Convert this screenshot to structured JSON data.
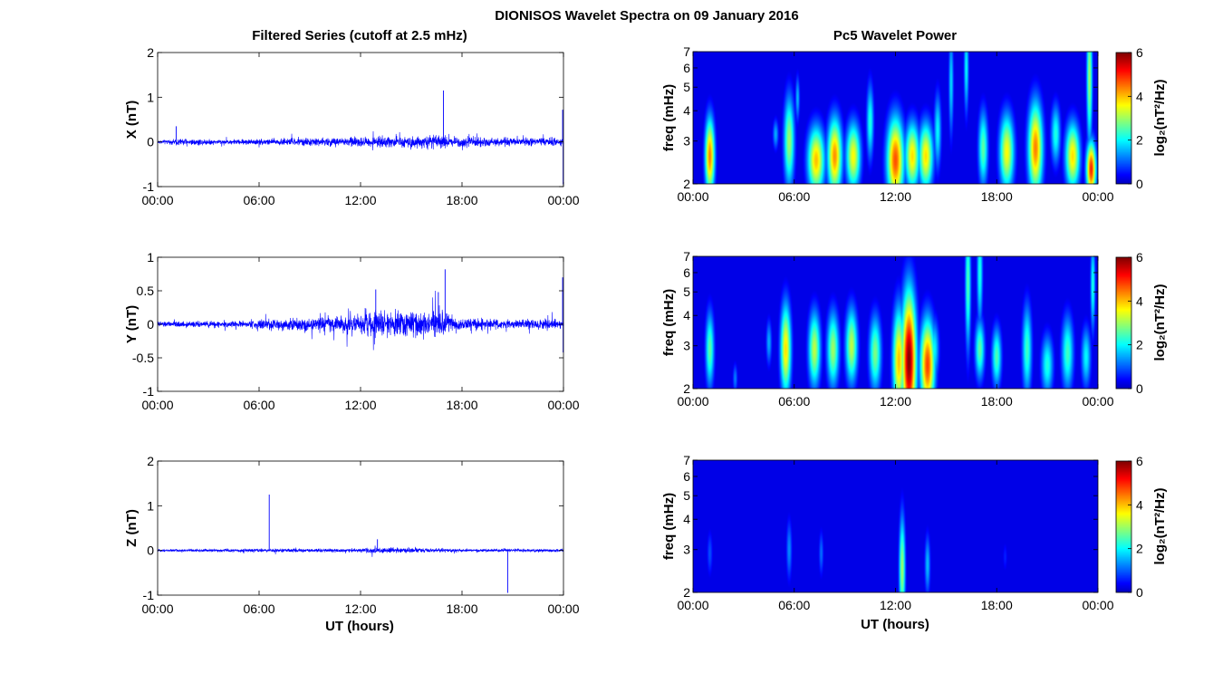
{
  "figure": {
    "title": "DIONISOS Wavelet Spectra on 09 January 2016",
    "left_column_title": "Filtered Series (cutoff at 2.5 mHz)",
    "right_column_title": "Pc5 Wavelet Power",
    "xlabel": "UT (hours)"
  },
  "colors": {
    "trace": "#0000ff",
    "axes": "#000000",
    "background": "#ffffff",
    "colormap": "jet"
  },
  "chart_data": [
    {
      "type": "line",
      "component": "X",
      "ylabel": "X (nT)",
      "ylim": [
        -1,
        2
      ],
      "yticks": [
        "-1",
        "0",
        "1",
        "2"
      ],
      "xlim": [
        0,
        24
      ],
      "xticks": [
        "00:00",
        "06:00",
        "12:00",
        "18:00",
        "00:00"
      ],
      "noise_envelope": {
        "x": [
          0,
          1,
          1.2,
          4,
          6,
          9,
          12,
          14,
          16,
          18,
          21,
          23,
          24
        ],
        "amplitude": [
          0.06,
          0.07,
          0.12,
          0.07,
          0.1,
          0.12,
          0.15,
          0.16,
          0.2,
          0.17,
          0.12,
          0.14,
          0.1
        ]
      },
      "spikes": [
        {
          "x": 1.1,
          "y": 0.35
        },
        {
          "x": 16.9,
          "y": 1.15
        },
        {
          "x": 23.95,
          "y": 0.72
        },
        {
          "x": 23.98,
          "y": -0.95
        }
      ]
    },
    {
      "type": "line",
      "component": "Y",
      "ylabel": "Y (nT)",
      "ylim": [
        -1,
        1
      ],
      "yticks": [
        "-1",
        "-0.5",
        "0",
        "0.5",
        "1"
      ],
      "xlim": [
        0,
        24
      ],
      "xticks": [
        "00:00",
        "06:00",
        "12:00",
        "18:00",
        "00:00"
      ],
      "noise_envelope": {
        "x": [
          0,
          3,
          5.5,
          6,
          9,
          12,
          12.8,
          14,
          16.5,
          18,
          21,
          23,
          24
        ],
        "amplitude": [
          0.06,
          0.06,
          0.07,
          0.12,
          0.13,
          0.2,
          0.28,
          0.25,
          0.3,
          0.14,
          0.09,
          0.11,
          0.07
        ]
      },
      "spikes": [
        {
          "x": 12.9,
          "y": 0.52
        },
        {
          "x": 17.0,
          "y": 0.82
        },
        {
          "x": 16.6,
          "y": 0.48
        },
        {
          "x": 23.95,
          "y": 0.7
        },
        {
          "x": 23.98,
          "y": -0.42
        }
      ]
    },
    {
      "type": "line",
      "component": "Z",
      "ylabel": "Z (nT)",
      "ylim": [
        -1,
        2
      ],
      "yticks": [
        "-1",
        "0",
        "1",
        "2"
      ],
      "xlim": [
        0,
        24
      ],
      "xticks": [
        "00:00",
        "06:00",
        "12:00",
        "18:00",
        "00:00"
      ],
      "noise_envelope": {
        "x": [
          0,
          6,
          12,
          13,
          18,
          24
        ],
        "amplitude": [
          0.04,
          0.05,
          0.06,
          0.09,
          0.05,
          0.05
        ]
      },
      "spikes": [
        {
          "x": 6.6,
          "y": 1.25
        },
        {
          "x": 20.7,
          "y": -0.95
        },
        {
          "x": 13.0,
          "y": 0.25
        }
      ]
    },
    {
      "type": "heatmap",
      "component": "X",
      "ylabel": "freq (mHz)",
      "yscale": "log",
      "ylim": [
        2,
        7
      ],
      "yticks": [
        "2",
        "3",
        "4",
        "5",
        "6",
        "7"
      ],
      "xlim": [
        0,
        24
      ],
      "xticks": [
        "00:00",
        "06:00",
        "12:00",
        "18:00",
        "00:00"
      ],
      "colorbar": {
        "label": "log₂(nT²/Hz)",
        "range": [
          0,
          6
        ],
        "ticks": [
          "0",
          "2",
          "4",
          "6"
        ]
      },
      "blobs": [
        {
          "t": 1.0,
          "f": 2.6,
          "w": 0.2,
          "h": 0.25,
          "p": 4.4
        },
        {
          "t": 4.9,
          "f": 3.2,
          "w": 0.12,
          "h": 0.1,
          "p": 1.5
        },
        {
          "t": 5.7,
          "f": 3.0,
          "w": 0.22,
          "h": 0.3,
          "p": 3.0
        },
        {
          "t": 6.2,
          "f": 4.5,
          "w": 0.09,
          "h": 0.15,
          "p": 1.6
        },
        {
          "t": 7.3,
          "f": 2.5,
          "w": 0.35,
          "h": 0.22,
          "p": 4.0
        },
        {
          "t": 8.4,
          "f": 2.6,
          "w": 0.3,
          "h": 0.25,
          "p": 4.3
        },
        {
          "t": 9.5,
          "f": 2.6,
          "w": 0.3,
          "h": 0.22,
          "p": 3.6
        },
        {
          "t": 10.5,
          "f": 3.6,
          "w": 0.15,
          "h": 0.25,
          "p": 2.2
        },
        {
          "t": 12.0,
          "f": 2.5,
          "w": 0.35,
          "h": 0.28,
          "p": 4.7
        },
        {
          "t": 13.0,
          "f": 2.6,
          "w": 0.3,
          "h": 0.22,
          "p": 3.8
        },
        {
          "t": 13.8,
          "f": 2.6,
          "w": 0.3,
          "h": 0.22,
          "p": 3.8
        },
        {
          "t": 14.5,
          "f": 3.3,
          "w": 0.15,
          "h": 0.25,
          "p": 2.0
        },
        {
          "t": 15.3,
          "f": 5.2,
          "w": 0.1,
          "h": 0.35,
          "p": 1.8
        },
        {
          "t": 16.2,
          "f": 6.0,
          "w": 0.1,
          "h": 0.3,
          "p": 2.0
        },
        {
          "t": 17.2,
          "f": 2.8,
          "w": 0.2,
          "h": 0.25,
          "p": 2.6
        },
        {
          "t": 18.6,
          "f": 2.7,
          "w": 0.3,
          "h": 0.25,
          "p": 3.6
        },
        {
          "t": 20.3,
          "f": 2.8,
          "w": 0.3,
          "h": 0.3,
          "p": 4.4
        },
        {
          "t": 21.5,
          "f": 3.2,
          "w": 0.2,
          "h": 0.2,
          "p": 2.2
        },
        {
          "t": 22.5,
          "f": 2.6,
          "w": 0.3,
          "h": 0.22,
          "p": 3.8
        },
        {
          "t": 23.6,
          "f": 2.3,
          "w": 0.2,
          "h": 0.18,
          "p": 5.0
        },
        {
          "t": 23.5,
          "f": 5.5,
          "w": 0.12,
          "h": 0.45,
          "p": 3.0
        }
      ]
    },
    {
      "type": "heatmap",
      "component": "Y",
      "ylabel": "freq (mHz)",
      "yscale": "log",
      "ylim": [
        2,
        7
      ],
      "yticks": [
        "2",
        "3",
        "4",
        "5",
        "6",
        "7"
      ],
      "xlim": [
        0,
        24
      ],
      "xticks": [
        "00:00",
        "06:00",
        "12:00",
        "18:00",
        "00:00"
      ],
      "colorbar": {
        "label": "log₂(nT²/Hz)",
        "range": [
          0,
          6
        ],
        "ticks": [
          "0",
          "2",
          "4",
          "6"
        ]
      },
      "blobs": [
        {
          "t": 1.0,
          "f": 2.9,
          "w": 0.18,
          "h": 0.25,
          "p": 2.6
        },
        {
          "t": 2.5,
          "f": 2.2,
          "w": 0.1,
          "h": 0.1,
          "p": 1.2
        },
        {
          "t": 4.5,
          "f": 3.1,
          "w": 0.12,
          "h": 0.15,
          "p": 1.5
        },
        {
          "t": 5.5,
          "f": 2.9,
          "w": 0.22,
          "h": 0.3,
          "p": 3.8
        },
        {
          "t": 7.2,
          "f": 2.9,
          "w": 0.25,
          "h": 0.25,
          "p": 3.2
        },
        {
          "t": 8.3,
          "f": 2.9,
          "w": 0.25,
          "h": 0.25,
          "p": 3.0
        },
        {
          "t": 9.4,
          "f": 3.0,
          "w": 0.25,
          "h": 0.25,
          "p": 3.2
        },
        {
          "t": 10.8,
          "f": 2.8,
          "w": 0.25,
          "h": 0.25,
          "p": 2.8
        },
        {
          "t": 12.2,
          "f": 2.6,
          "w": 0.25,
          "h": 0.35,
          "p": 4.0
        },
        {
          "t": 12.8,
          "f": 2.6,
          "w": 0.3,
          "h": 0.45,
          "p": 6.0
        },
        {
          "t": 13.9,
          "f": 2.5,
          "w": 0.3,
          "h": 0.3,
          "p": 4.8
        },
        {
          "t": 14.3,
          "f": 2.9,
          "w": 0.2,
          "h": 0.2,
          "p": 2.0
        },
        {
          "t": 16.3,
          "f": 5.4,
          "w": 0.12,
          "h": 0.45,
          "p": 2.5
        },
        {
          "t": 17.0,
          "f": 6.0,
          "w": 0.12,
          "h": 0.35,
          "p": 2.2
        },
        {
          "t": 17.0,
          "f": 2.9,
          "w": 0.2,
          "h": 0.2,
          "p": 2.6
        },
        {
          "t": 18.0,
          "f": 2.7,
          "w": 0.2,
          "h": 0.2,
          "p": 2.5
        },
        {
          "t": 19.8,
          "f": 2.9,
          "w": 0.2,
          "h": 0.3,
          "p": 2.4
        },
        {
          "t": 21.0,
          "f": 2.5,
          "w": 0.25,
          "h": 0.2,
          "p": 2.2
        },
        {
          "t": 22.2,
          "f": 2.8,
          "w": 0.25,
          "h": 0.25,
          "p": 2.4
        },
        {
          "t": 23.3,
          "f": 2.7,
          "w": 0.2,
          "h": 0.2,
          "p": 2.0
        },
        {
          "t": 23.7,
          "f": 5.3,
          "w": 0.1,
          "h": 0.3,
          "p": 2.2
        }
      ]
    },
    {
      "type": "heatmap",
      "component": "Z",
      "ylabel": "freq (mHz)",
      "yscale": "log",
      "ylim": [
        2,
        7
      ],
      "yticks": [
        "2",
        "3",
        "4",
        "5",
        "6",
        "7"
      ],
      "xlim": [
        0,
        24
      ],
      "xticks": [
        "00:00",
        "06:00",
        "12:00",
        "18:00",
        "00:00"
      ],
      "colorbar": {
        "label": "log₂(nT²/Hz)",
        "range": [
          0,
          6
        ],
        "ticks": [
          "0",
          "2",
          "4",
          "6"
        ]
      },
      "blobs": [
        {
          "t": 1.0,
          "f": 2.9,
          "w": 0.12,
          "h": 0.15,
          "p": 0.9
        },
        {
          "t": 5.7,
          "f": 3.0,
          "w": 0.12,
          "h": 0.2,
          "p": 1.3
        },
        {
          "t": 7.6,
          "f": 2.9,
          "w": 0.1,
          "h": 0.15,
          "p": 1.1
        },
        {
          "t": 12.4,
          "f": 2.5,
          "w": 0.13,
          "h": 0.35,
          "p": 3.0
        },
        {
          "t": 13.9,
          "f": 2.6,
          "w": 0.12,
          "h": 0.2,
          "p": 1.6
        },
        {
          "t": 18.5,
          "f": 2.8,
          "w": 0.1,
          "h": 0.1,
          "p": 0.6
        }
      ]
    }
  ]
}
